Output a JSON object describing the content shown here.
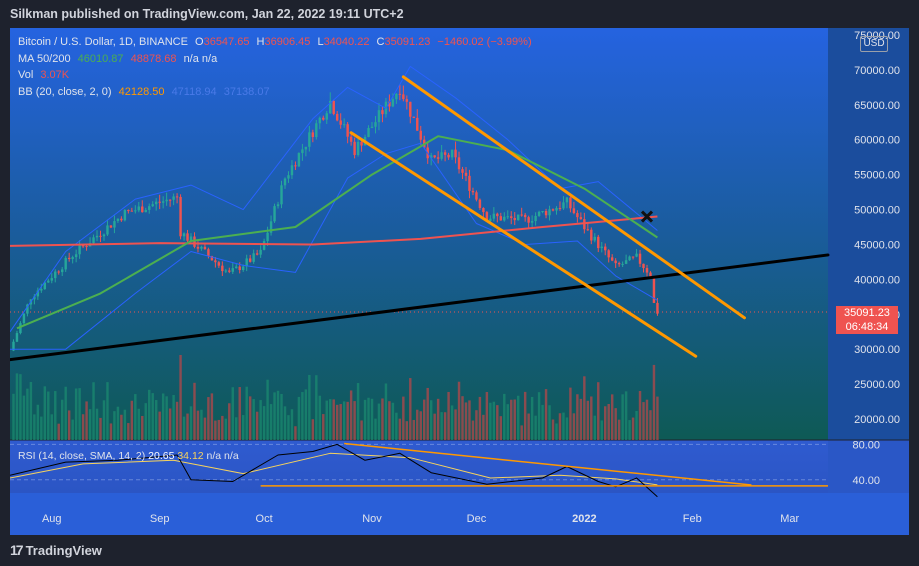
{
  "header": {
    "publisher": "Silkman published on TradingView.com, Jan 22, 2022 19:11 UTC+2"
  },
  "footer": {
    "brand": "TradingView"
  },
  "legend": {
    "symbol": "Bitcoin / U.S. Dollar, 1D, BINANCE",
    "o_label": "O",
    "o": "36547.65",
    "h_label": "H",
    "h": "36906.45",
    "l_label": "L",
    "l": "34040.22",
    "c_label": "C",
    "c": "35091.23",
    "change": "−1460.02 (−3.99%)",
    "ma_label": "MA 50/200",
    "ma50": "46010.87",
    "ma200": "48878.68",
    "ma_na": "n/a  n/a",
    "vol_label": "Vol",
    "vol": "3.07K",
    "bb_label": "BB (20, close, 2, 0)",
    "bb_basis": "42128.50",
    "bb_upper": "47118.94",
    "bb_lower": "37138.07",
    "currency": "USD"
  },
  "last_price": "35091.23",
  "countdown": "06:48:34",
  "rsi_legend": {
    "label": "RSI (14, close, SMA, 14, 2)",
    "rsi": "20.65",
    "sma": "34.12",
    "na": "n/a  n/a"
  },
  "colors": {
    "bg_top": "#2a5fd8",
    "bg_bottom": "#0f5b5a",
    "up": "#26a69a",
    "down": "#ef5350",
    "ma50": "#4caf50",
    "ma200": "#ef5350",
    "bb": "#2962ff",
    "channel": "#ff9800",
    "trend": "#000000",
    "rsi_bg": "#2f5bd0",
    "rsi_line": "#000000",
    "rsi_sma": "#f7d35d"
  },
  "chart_data": [
    {
      "type": "candlestick",
      "title": "Bitcoin / U.S. Dollar, 1D, BINANCE",
      "x_ticks": [
        "Aug",
        "Sep",
        "Oct",
        "Nov",
        "Dec",
        "2022",
        "Feb",
        "Mar"
      ],
      "x_tick_dates": [
        "2021-08-01",
        "2021-09-01",
        "2021-10-01",
        "2021-11-01",
        "2021-12-01",
        "2022-01-01",
        "2022-02-01",
        "2022-03-01"
      ],
      "y_ticks": [
        20000,
        25000,
        30000,
        35000,
        40000,
        45000,
        50000,
        55000,
        60000,
        65000,
        70000,
        75000
      ],
      "y_tick_labels": [
        "20000.00",
        "25000.00",
        "30000.00",
        "35000.00",
        "40000.00",
        "45000.00",
        "50000.00",
        "55000.00",
        "60000.00",
        "65000.00",
        "70000.00",
        "75000.00"
      ],
      "ylim": [
        17000,
        76000
      ],
      "xlim": [
        "2021-07-20",
        "2022-03-12"
      ],
      "price_path": [
        {
          "date": "2021-07-20",
          "close": 29800
        },
        {
          "date": "2021-07-26",
          "close": 37500
        },
        {
          "date": "2021-08-07",
          "close": 43500
        },
        {
          "date": "2021-08-22",
          "close": 49500
        },
        {
          "date": "2021-09-06",
          "close": 51800
        },
        {
          "date": "2021-09-07",
          "close": 46800
        },
        {
          "date": "2021-09-21",
          "close": 40800
        },
        {
          "date": "2021-09-30",
          "close": 43800
        },
        {
          "date": "2021-10-07",
          "close": 54500
        },
        {
          "date": "2021-10-20",
          "close": 65500
        },
        {
          "date": "2021-10-27",
          "close": 58500
        },
        {
          "date": "2021-11-09",
          "close": 67500
        },
        {
          "date": "2021-11-18",
          "close": 57000
        },
        {
          "date": "2021-11-24",
          "close": 57800
        },
        {
          "date": "2021-12-04",
          "close": 49000
        },
        {
          "date": "2021-12-15",
          "close": 48500
        },
        {
          "date": "2021-12-27",
          "close": 51000
        },
        {
          "date": "2022-01-01",
          "close": 47500
        },
        {
          "date": "2022-01-10",
          "close": 41800
        },
        {
          "date": "2022-01-16",
          "close": 43100
        },
        {
          "date": "2022-01-20",
          "close": 40700
        },
        {
          "date": "2022-01-21",
          "close": 36500
        },
        {
          "date": "2022-01-22",
          "close": 35091.23
        }
      ],
      "ma50_path": [
        {
          "date": "2021-07-22",
          "value": 33000
        },
        {
          "date": "2021-08-15",
          "value": 38000
        },
        {
          "date": "2021-09-10",
          "value": 45500
        },
        {
          "date": "2021-10-10",
          "value": 47500
        },
        {
          "date": "2021-11-01",
          "value": 55000
        },
        {
          "date": "2021-11-20",
          "value": 60500
        },
        {
          "date": "2021-12-10",
          "value": 58500
        },
        {
          "date": "2022-01-01",
          "value": 53000
        },
        {
          "date": "2022-01-22",
          "value": 46000
        }
      ],
      "ma200_path": [
        {
          "date": "2021-07-20",
          "value": 44800
        },
        {
          "date": "2021-09-01",
          "value": 45200
        },
        {
          "date": "2021-10-15",
          "value": 45000
        },
        {
          "date": "2021-11-15",
          "value": 45800
        },
        {
          "date": "2021-12-20",
          "value": 47500
        },
        {
          "date": "2022-01-22",
          "value": 49000
        }
      ],
      "bb_upper_path": [
        {
          "date": "2021-07-20",
          "value": 32500
        },
        {
          "date": "2021-08-05",
          "value": 44000
        },
        {
          "date": "2021-08-25",
          "value": 51500
        },
        {
          "date": "2021-09-10",
          "value": 53500
        },
        {
          "date": "2021-09-25",
          "value": 50000
        },
        {
          "date": "2021-10-15",
          "value": 63000
        },
        {
          "date": "2021-10-25",
          "value": 67500
        },
        {
          "date": "2021-11-05",
          "value": 64500
        },
        {
          "date": "2021-11-12",
          "value": 70500
        },
        {
          "date": "2021-11-25",
          "value": 66000
        },
        {
          "date": "2021-12-10",
          "value": 60000
        },
        {
          "date": "2021-12-25",
          "value": 53000
        },
        {
          "date": "2022-01-05",
          "value": 54000
        },
        {
          "date": "2022-01-22",
          "value": 47000
        }
      ],
      "bb_lower_path": [
        {
          "date": "2021-07-20",
          "value": 30000
        },
        {
          "date": "2021-08-05",
          "value": 30000
        },
        {
          "date": "2021-08-25",
          "value": 38000
        },
        {
          "date": "2021-09-10",
          "value": 44000
        },
        {
          "date": "2021-09-25",
          "value": 42000
        },
        {
          "date": "2021-10-10",
          "value": 41000
        },
        {
          "date": "2021-10-25",
          "value": 54500
        },
        {
          "date": "2021-11-05",
          "value": 58000
        },
        {
          "date": "2021-11-15",
          "value": 59500
        },
        {
          "date": "2021-12-01",
          "value": 48000
        },
        {
          "date": "2021-12-15",
          "value": 45000
        },
        {
          "date": "2021-12-30",
          "value": 45500
        },
        {
          "date": "2022-01-10",
          "value": 40500
        },
        {
          "date": "2022-01-22",
          "value": 37000
        }
      ],
      "drawings": {
        "trendline": [
          {
            "date": "2021-07-20",
            "value": 28500
          },
          {
            "date": "2022-03-12",
            "value": 43500
          }
        ],
        "channel_upper": [
          {
            "date": "2021-11-10",
            "value": 69000
          },
          {
            "date": "2022-02-16",
            "value": 34500
          }
        ],
        "channel_lower": [
          {
            "date": "2021-10-26",
            "value": 61000
          },
          {
            "date": "2022-02-02",
            "value": 29000
          }
        ],
        "cross_marker": {
          "date": "2022-01-19",
          "value": 49000
        }
      },
      "volume_ylim": [
        0,
        140000
      ],
      "volume_note": "volume histogram below price panel",
      "grid": false
    },
    {
      "type": "line",
      "title": "RSI (14, close, SMA, 14, 2)",
      "y_ticks": [
        40,
        80
      ],
      "y_tick_labels": [
        "40.00",
        "80.00"
      ],
      "ylim": [
        25,
        85
      ],
      "rsi_path": [
        {
          "date": "2021-07-20",
          "value": 45
        },
        {
          "date": "2021-08-05",
          "value": 60
        },
        {
          "date": "2021-08-20",
          "value": 62
        },
        {
          "date": "2021-09-06",
          "value": 68
        },
        {
          "date": "2021-09-10",
          "value": 40
        },
        {
          "date": "2021-09-22",
          "value": 38
        },
        {
          "date": "2021-10-05",
          "value": 68
        },
        {
          "date": "2021-10-15",
          "value": 72
        },
        {
          "date": "2021-10-22",
          "value": 80
        },
        {
          "date": "2021-10-30",
          "value": 62
        },
        {
          "date": "2021-11-09",
          "value": 70
        },
        {
          "date": "2021-11-18",
          "value": 48
        },
        {
          "date": "2021-12-04",
          "value": 35
        },
        {
          "date": "2021-12-20",
          "value": 42
        },
        {
          "date": "2021-12-27",
          "value": 55
        },
        {
          "date": "2022-01-05",
          "value": 38
        },
        {
          "date": "2022-01-10",
          "value": 32
        },
        {
          "date": "2022-01-16",
          "value": 42
        },
        {
          "date": "2022-01-22",
          "value": 20.65
        }
      ],
      "sma_path": [
        {
          "date": "2021-07-20",
          "value": 42
        },
        {
          "date": "2021-08-10",
          "value": 58
        },
        {
          "date": "2021-09-05",
          "value": 62
        },
        {
          "date": "2021-09-25",
          "value": 47
        },
        {
          "date": "2021-10-20",
          "value": 70
        },
        {
          "date": "2021-11-12",
          "value": 65
        },
        {
          "date": "2021-12-05",
          "value": 42
        },
        {
          "date": "2021-12-25",
          "value": 45
        },
        {
          "date": "2022-01-10",
          "value": 41
        },
        {
          "date": "2022-01-22",
          "value": 34.12
        }
      ],
      "drawings": {
        "upper_line": [
          {
            "date": "2021-10-24",
            "value": 81
          },
          {
            "date": "2022-02-18",
            "value": 34
          }
        ],
        "lower_line": [
          {
            "date": "2021-09-30",
            "value": 33
          },
          {
            "date": "2022-03-12",
            "value": 33
          }
        ]
      }
    }
  ]
}
